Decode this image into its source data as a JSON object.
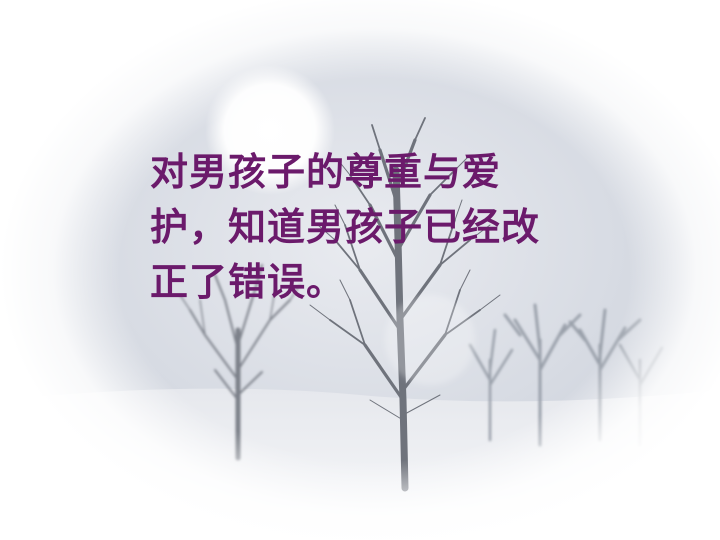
{
  "slide": {
    "text_lines": [
      "对男孩子的尊重与爱",
      "护，知道男孩子已经改",
      "正了错误。"
    ]
  },
  "colors": {
    "text": "#6b1a6b",
    "sky": "#dfe3ea",
    "snow": "#f2f3f6",
    "tree": "#7a7d86",
    "vignette": "#ffffff"
  },
  "icons": {
    "sun": "sun-icon",
    "trees": "tree-icon"
  }
}
